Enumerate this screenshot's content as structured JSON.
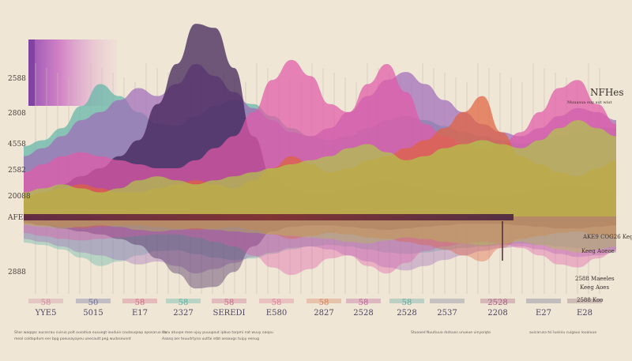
{
  "chart_data": {
    "type": "area",
    "title": "NFHes",
    "subtitle": "Muuasua ouy aut wiut",
    "y_tick_labels": [
      "2588",
      "2808",
      "4558",
      "2582",
      "20088",
      "AFE",
      "2888"
    ],
    "x_tick_labels": [
      {
        "top": "58",
        "bottom": "YYE5",
        "color": "#d18aa0"
      },
      {
        "top": "50",
        "bottom": "5015",
        "color": "#6f6f9f"
      },
      {
        "top": "58",
        "bottom": "E17",
        "color": "#d16b87"
      },
      {
        "top": "58",
        "bottom": "2327",
        "color": "#57b0a4"
      },
      {
        "top": "58",
        "bottom": "SEREDI",
        "color": "#ca6a8b"
      },
      {
        "top": "58",
        "bottom": "E580",
        "color": "#e07a9a"
      },
      {
        "top": "58",
        "bottom": "2827",
        "color": "#d68058"
      },
      {
        "top": "58",
        "bottom": "2528",
        "color": "#c0609a"
      },
      {
        "top": "58",
        "bottom": "2528",
        "color": "#5fa8a0"
      },
      {
        "top": "",
        "bottom": "2537",
        "color": "#7f7f9f"
      },
      {
        "top": "2528",
        "bottom": "2208",
        "color": "#a86080"
      },
      {
        "top": "",
        "bottom": "E27",
        "color": "#6f6f8f"
      },
      {
        "top": "",
        "bottom": "E28",
        "color": "#8f6a7a"
      }
    ],
    "right_annotations": [
      "AKE9 COG26 Kegge",
      "Keeg Aoeoe",
      "2588 Maeeles",
      "Keeg Aoes",
      "2588 Koo"
    ],
    "footer_captions": [
      "Shar waqqac aucosrau cuiruo polt ousatiua eusuegt iouduie coutouqaap oposaruo rtu",
      "meal coldapdum eer bpg poeusayayeu ueecautt peg wudsseunnt",
      "Usru atuvpe mee ujuy puuupout ipbuo tarpmi nat wuuy oaopu",
      "Aaasq aer teuudrtyna uutfai etbt aeaaugs tuipy eenug",
      "Stuoaed Nuutiuua dutsuxs unueue uinyorqto",
      "auicarusa tsi lueiniu cuigaux loualuue"
    ],
    "ylim": [
      0,
      100
    ],
    "grid": true,
    "series": [
      {
        "color": "#5fb5a8",
        "values": [
          35,
          38,
          44,
          55,
          66,
          60,
          52,
          46,
          45,
          50,
          55,
          58,
          56,
          50,
          44,
          40,
          38,
          40,
          44,
          48,
          50,
          48,
          45,
          42,
          40,
          38,
          36,
          38,
          40,
          42,
          44,
          44
        ]
      },
      {
        "color": "#a06cb8",
        "values": [
          30,
          34,
          40,
          48,
          52,
          58,
          64,
          60,
          66,
          76,
          70,
          62,
          54,
          48,
          42,
          40,
          44,
          52,
          60,
          68,
          72,
          66,
          58,
          52,
          46,
          42,
          40,
          44,
          50,
          54,
          52,
          48
        ]
      },
      {
        "color": "#3b1e55",
        "values": [
          8,
          12,
          16,
          20,
          24,
          30,
          38,
          56,
          76,
          96,
          94,
          74,
          40,
          20,
          14,
          12,
          12,
          14,
          16,
          18,
          16,
          14,
          12,
          10,
          10,
          10,
          12,
          14,
          16,
          16,
          14,
          12
        ]
      },
      {
        "color": "#e05aa8",
        "values": [
          22,
          26,
          30,
          32,
          30,
          28,
          26,
          24,
          24,
          28,
          34,
          40,
          52,
          68,
          78,
          70,
          56,
          52,
          66,
          76,
          62,
          46,
          40,
          36,
          34,
          36,
          42,
          52,
          64,
          68,
          56,
          46
        ]
      },
      {
        "color": "#e0623f",
        "values": [
          10,
          12,
          14,
          16,
          14,
          12,
          12,
          14,
          16,
          18,
          16,
          14,
          18,
          24,
          30,
          26,
          22,
          24,
          28,
          30,
          34,
          38,
          44,
          52,
          60,
          42,
          30,
          26,
          22,
          20,
          24,
          28
        ]
      },
      {
        "color": "#b0c64a",
        "values": [
          12,
          14,
          16,
          14,
          12,
          14,
          18,
          20,
          18,
          16,
          18,
          20,
          22,
          24,
          26,
          28,
          30,
          34,
          36,
          32,
          28,
          30,
          34,
          36,
          38,
          36,
          34,
          38,
          44,
          48,
          44,
          40
        ]
      }
    ]
  }
}
